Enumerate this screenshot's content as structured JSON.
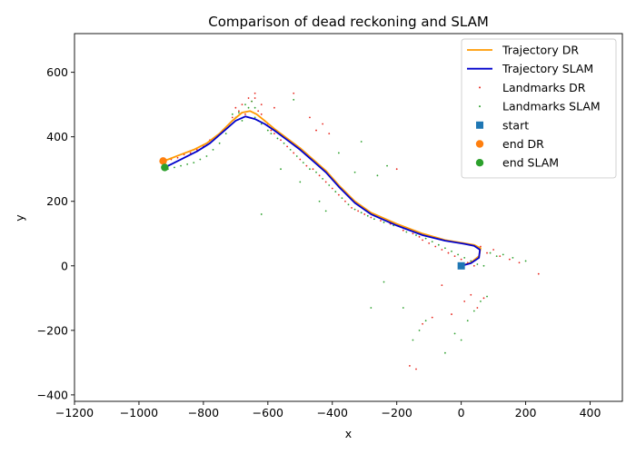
{
  "chart_data": {
    "type": "line",
    "title": "Comparison of dead reckoning and SLAM",
    "xlabel": "x",
    "ylabel": "y",
    "xlim": [
      -1200,
      500
    ],
    "ylim": [
      -420,
      720
    ],
    "xticks": [
      -1200,
      -1000,
      -800,
      -600,
      -400,
      -200,
      0,
      200,
      400
    ],
    "yticks": [
      -400,
      -200,
      0,
      200,
      400,
      600
    ],
    "xtick_labels": [
      "−1200",
      "−1000",
      "−800",
      "−600",
      "−400",
      "−200",
      "0",
      "200",
      "400"
    ],
    "ytick_labels": [
      "−400",
      "−200",
      "0",
      "200",
      "400",
      "600"
    ],
    "grid": false,
    "legend_position": "top-right",
    "legend": [
      {
        "label": "Trajectory DR",
        "kind": "line",
        "color": "#ff9900"
      },
      {
        "label": "Trajectory SLAM",
        "kind": "line",
        "color": "#0000cc"
      },
      {
        "label": "Landmarks DR",
        "kind": "dot",
        "color": "#e8251c"
      },
      {
        "label": "Landmarks SLAM",
        "kind": "dot",
        "color": "#2ca02c"
      },
      {
        "label": "start",
        "kind": "square",
        "color": "#1f77b4"
      },
      {
        "label": "end DR",
        "kind": "circle",
        "color": "#ff7f0e"
      },
      {
        "label": "end SLAM",
        "kind": "circle",
        "color": "#2ca02c"
      }
    ],
    "series": [
      {
        "name": "Trajectory DR",
        "color": "#ff9900",
        "x": [
          0,
          30,
          55,
          60,
          40,
          10,
          -50,
          -120,
          -200,
          -280,
          -330,
          -380,
          -420,
          -460,
          -500,
          -540,
          -580,
          -610,
          -635,
          -655,
          -680,
          -710,
          -750,
          -790,
          -830,
          -870,
          -910,
          -925
        ],
        "y": [
          0,
          10,
          30,
          55,
          65,
          70,
          80,
          100,
          130,
          165,
          200,
          250,
          295,
          330,
          365,
          395,
          425,
          450,
          470,
          480,
          475,
          450,
          410,
          380,
          360,
          345,
          330,
          325
        ]
      },
      {
        "name": "Trajectory SLAM",
        "color": "#0000cc",
        "x": [
          0,
          30,
          55,
          58,
          40,
          10,
          -50,
          -120,
          -200,
          -280,
          -330,
          -380,
          -420,
          -460,
          -500,
          -540,
          -580,
          -610,
          -640,
          -670,
          -700,
          -740,
          -780,
          -820,
          -860,
          -900,
          -920
        ],
        "y": [
          0,
          8,
          25,
          50,
          62,
          68,
          78,
          95,
          125,
          160,
          195,
          245,
          290,
          325,
          360,
          390,
          420,
          440,
          455,
          463,
          450,
          415,
          380,
          355,
          335,
          315,
          305
        ]
      }
    ],
    "points": {
      "start": {
        "x": 0,
        "y": 0,
        "color": "#1f77b4"
      },
      "end_dr": {
        "x": -925,
        "y": 325,
        "color": "#ff7f0e"
      },
      "end_slam": {
        "x": -920,
        "y": 305,
        "color": "#2ca02c"
      }
    },
    "landmarks_dr": {
      "color": "#e8251c",
      "x": [
        -700,
        -690,
        -680,
        -670,
        -660,
        -650,
        -640,
        -630,
        -620,
        -610,
        -600,
        -590,
        -580,
        -560,
        -540,
        -520,
        -500,
        -480,
        -460,
        -440,
        -420,
        -400,
        -380,
        -360,
        -340,
        -320,
        -300,
        -280,
        -250,
        -220,
        -180,
        -150,
        -130,
        -120,
        -100,
        -80,
        -60,
        -40,
        -20,
        0,
        20,
        40,
        60,
        80,
        100,
        120,
        150,
        180,
        240,
        -760,
        -780,
        -800,
        -820,
        -840,
        -860,
        -880,
        -900,
        -740,
        -720,
        -710,
        -640,
        -520,
        -160,
        -140,
        -200,
        -120,
        -90,
        -60,
        -30,
        10,
        30,
        50,
        70,
        -620,
        -580,
        -470,
        -450,
        -430,
        -410
      ],
      "y": [
        490,
        480,
        500,
        470,
        520,
        510,
        535,
        480,
        470,
        450,
        440,
        420,
        410,
        390,
        370,
        350,
        330,
        310,
        300,
        280,
        260,
        240,
        220,
        200,
        180,
        170,
        160,
        150,
        140,
        130,
        110,
        100,
        90,
        80,
        70,
        60,
        50,
        40,
        30,
        20,
        10,
        0,
        60,
        40,
        50,
        30,
        20,
        10,
        -25,
        400,
        390,
        370,
        360,
        350,
        345,
        335,
        330,
        420,
        440,
        460,
        520,
        535,
        -310,
        -320,
        300,
        -180,
        -160,
        -60,
        -150,
        -110,
        -90,
        -130,
        -100,
        500,
        490,
        460,
        420,
        440,
        410
      ]
    },
    "landmarks_slam": {
      "color": "#2ca02c",
      "x": [
        -710,
        -700,
        -690,
        -680,
        -670,
        -660,
        -650,
        -640,
        -630,
        -620,
        -600,
        -590,
        -570,
        -550,
        -530,
        -510,
        -490,
        -470,
        -450,
        -430,
        -410,
        -390,
        -370,
        -350,
        -330,
        -310,
        -290,
        -270,
        -240,
        -210,
        -170,
        -140,
        -110,
        -90,
        -70,
        -50,
        -30,
        -10,
        10,
        30,
        50,
        70,
        90,
        110,
        130,
        160,
        200,
        -770,
        -790,
        -810,
        -830,
        -850,
        -870,
        -890,
        -910,
        -750,
        -730,
        -640,
        -620,
        -520,
        -310,
        -420,
        -110,
        -130,
        -150,
        -180,
        -240,
        -280,
        -50,
        -20,
        0,
        20,
        40,
        60,
        80,
        -560,
        -500,
        -440,
        -380,
        -330,
        -260,
        -230
      ],
      "y": [
        470,
        460,
        475,
        450,
        500,
        490,
        510,
        460,
        450,
        440,
        420,
        410,
        395,
        380,
        360,
        340,
        320,
        300,
        290,
        270,
        250,
        230,
        210,
        190,
        175,
        165,
        155,
        145,
        135,
        125,
        105,
        95,
        85,
        75,
        65,
        55,
        45,
        35,
        25,
        15,
        5,
        0,
        40,
        30,
        35,
        25,
        15,
        360,
        340,
        330,
        320,
        315,
        310,
        305,
        300,
        380,
        410,
        490,
        160,
        515,
        385,
        170,
        -170,
        -200,
        -230,
        -130,
        -50,
        -130,
        -270,
        -210,
        -230,
        -170,
        -140,
        -110,
        -95,
        300,
        260,
        200,
        350,
        290,
        280,
        310
      ]
    }
  }
}
